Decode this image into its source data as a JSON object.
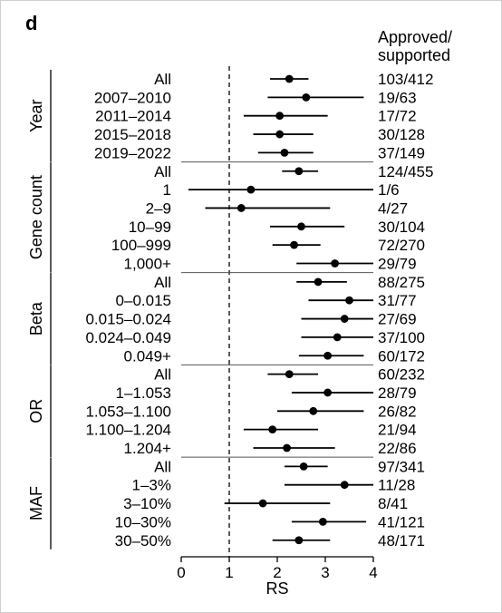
{
  "chart_data": {
    "type": "forest",
    "panel_label": "d",
    "xlabel": "RS",
    "xlim": [
      0,
      4
    ],
    "xticks": [
      0,
      1,
      2,
      3,
      4
    ],
    "reference_line": 1,
    "right_header": [
      "Approved/",
      "supported"
    ],
    "groups": [
      {
        "name": "Year",
        "rows": [
          {
            "label": "All",
            "est": 2.25,
            "lo": 1.85,
            "hi": 2.65,
            "count": "103/412"
          },
          {
            "label": "2007–2010",
            "est": 2.6,
            "lo": 1.8,
            "hi": 3.8,
            "count": "19/63"
          },
          {
            "label": "2011–2014",
            "est": 2.05,
            "lo": 1.3,
            "hi": 3.05,
            "count": "17/72"
          },
          {
            "label": "2015–2018",
            "est": 2.05,
            "lo": 1.5,
            "hi": 2.75,
            "count": "30/128"
          },
          {
            "label": "2019–2022",
            "est": 2.15,
            "lo": 1.6,
            "hi": 2.75,
            "count": "37/149"
          }
        ]
      },
      {
        "name": "Gene count",
        "rows": [
          {
            "label": "All",
            "est": 2.45,
            "lo": 2.1,
            "hi": 2.85,
            "count": "124/455"
          },
          {
            "label": "1",
            "est": 1.45,
            "lo": 0.15,
            "hi": 4.0,
            "count": "1/6"
          },
          {
            "label": "2–9",
            "est": 1.25,
            "lo": 0.5,
            "hi": 3.1,
            "count": "4/27"
          },
          {
            "label": "10–99",
            "est": 2.5,
            "lo": 1.85,
            "hi": 3.4,
            "count": "30/104"
          },
          {
            "label": "100–999",
            "est": 2.35,
            "lo": 1.9,
            "hi": 2.9,
            "count": "72/270"
          },
          {
            "label": "1,000+",
            "est": 3.2,
            "lo": 2.4,
            "hi": 4.0,
            "count": "29/79"
          }
        ]
      },
      {
        "name": "Beta",
        "rows": [
          {
            "label": "All",
            "est": 2.85,
            "lo": 2.4,
            "hi": 3.45,
            "count": "88/275"
          },
          {
            "label": "0–0.015",
            "est": 3.5,
            "lo": 2.65,
            "hi": 4.0,
            "count": "31/77"
          },
          {
            "label": "0.015–0.024",
            "est": 3.4,
            "lo": 2.5,
            "hi": 4.0,
            "count": "27/69"
          },
          {
            "label": "0.024–0.049",
            "est": 3.25,
            "lo": 2.5,
            "hi": 4.0,
            "count": "37/100"
          },
          {
            "label": "0.049+",
            "est": 3.05,
            "lo": 2.45,
            "hi": 3.8,
            "count": "60/172"
          }
        ]
      },
      {
        "name": "OR",
        "rows": [
          {
            "label": "All",
            "est": 2.25,
            "lo": 1.8,
            "hi": 2.85,
            "count": "60/232"
          },
          {
            "label": "1–1.053",
            "est": 3.05,
            "lo": 2.3,
            "hi": 4.0,
            "count": "28/79"
          },
          {
            "label": "1.053–1.100",
            "est": 2.75,
            "lo": 2.0,
            "hi": 3.8,
            "count": "26/82"
          },
          {
            "label": "1.100–1.204",
            "est": 1.9,
            "lo": 1.3,
            "hi": 2.85,
            "count": "21/94"
          },
          {
            "label": "1.204+",
            "est": 2.2,
            "lo": 1.5,
            "hi": 3.2,
            "count": "22/86"
          }
        ]
      },
      {
        "name": "MAF",
        "rows": [
          {
            "label": "All",
            "est": 2.55,
            "lo": 2.15,
            "hi": 3.05,
            "count": "97/341"
          },
          {
            "label": "1–3%",
            "est": 3.4,
            "lo": 2.15,
            "hi": 4.0,
            "count": "11/28"
          },
          {
            "label": "3–10%",
            "est": 1.7,
            "lo": 0.9,
            "hi": 3.1,
            "count": "8/41"
          },
          {
            "label": "10–30%",
            "est": 2.95,
            "lo": 2.3,
            "hi": 3.85,
            "count": "41/121"
          },
          {
            "label": "30–50%",
            "est": 2.45,
            "lo": 1.9,
            "hi": 3.1,
            "count": "48/171"
          }
        ]
      }
    ]
  }
}
